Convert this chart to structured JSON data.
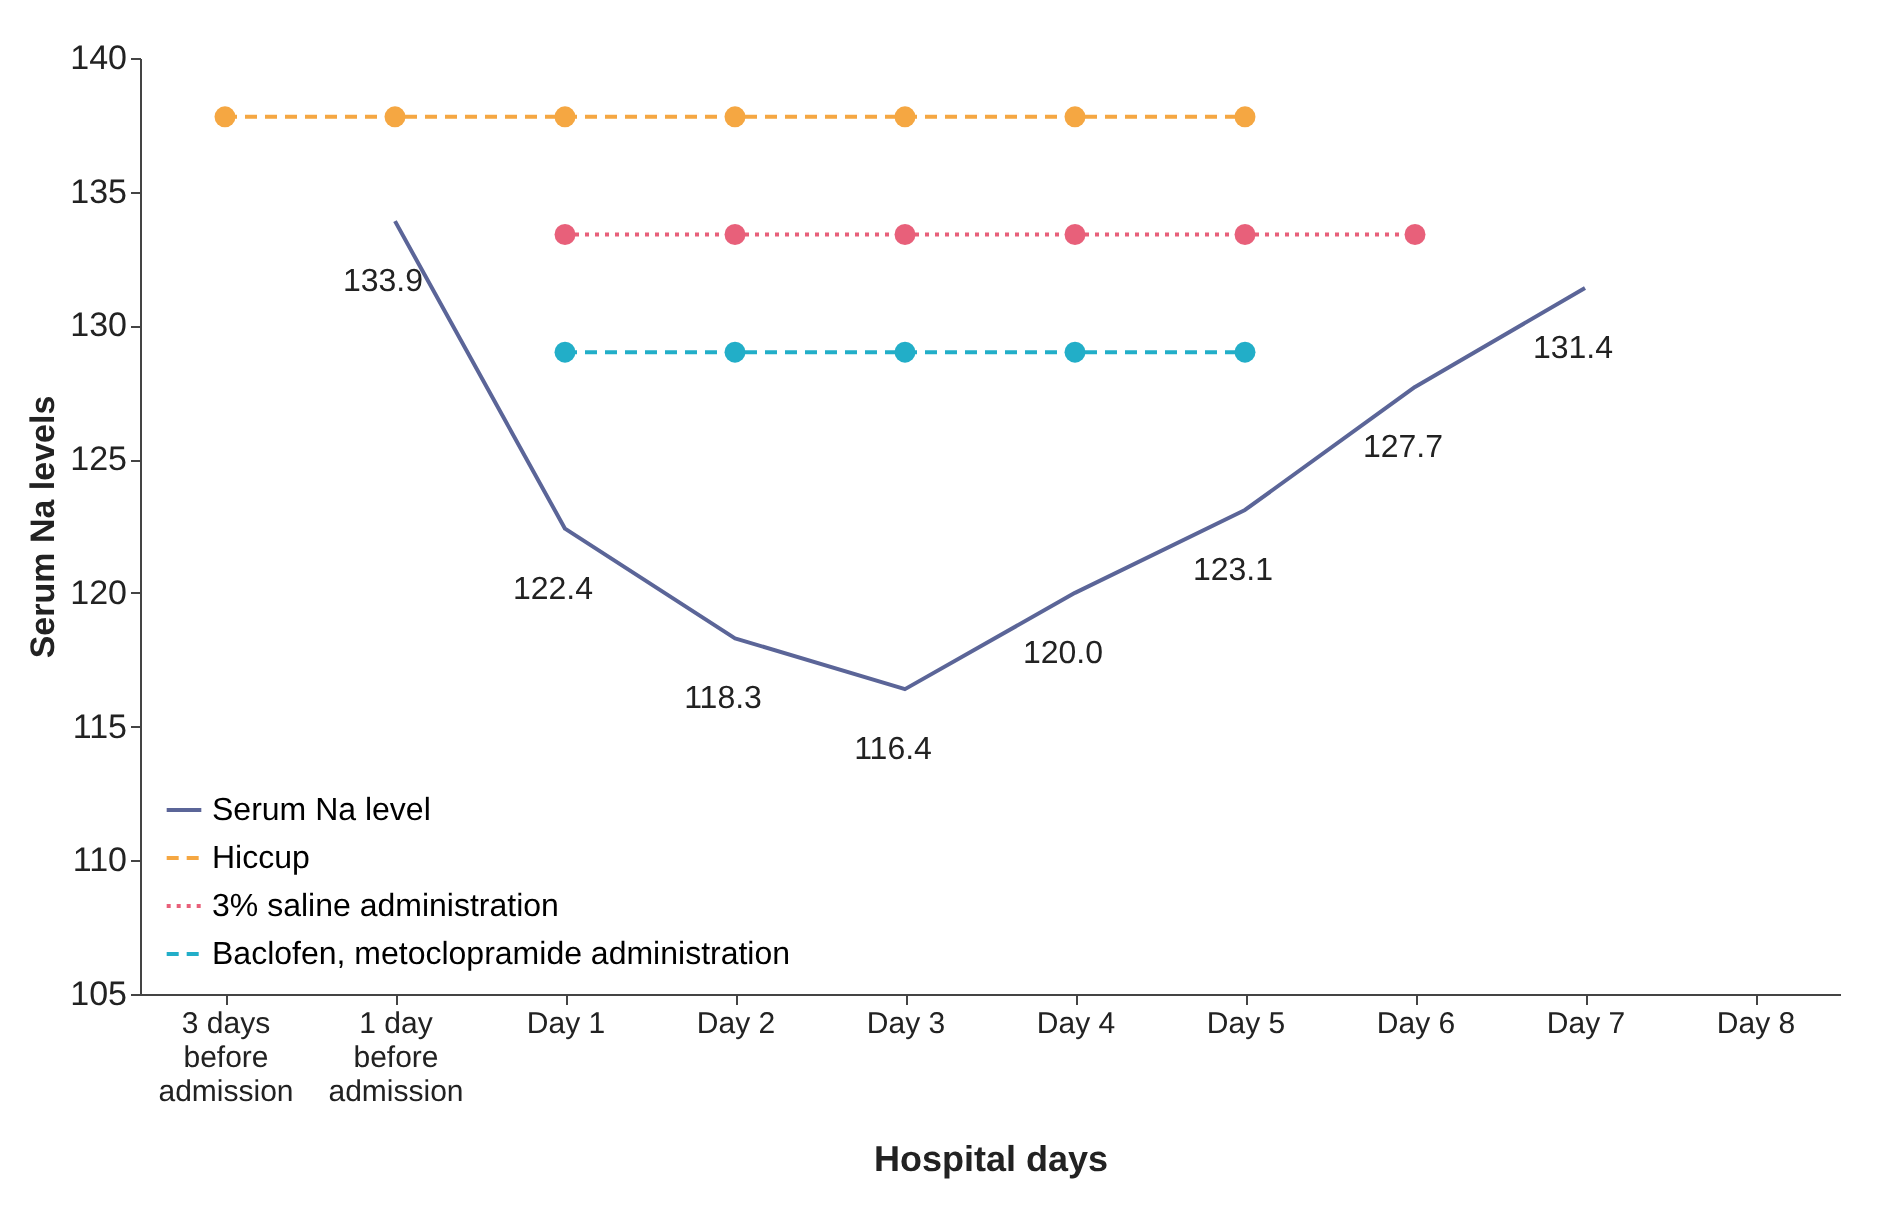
{
  "chart_data": {
    "type": "line",
    "xlabel": "Hospital days",
    "ylabel": "Serum Na levels",
    "categories": [
      "3 days\nbefore\nadmission",
      "1 day\nbefore\nadmission",
      "Day 1",
      "Day 2",
      "Day 3",
      "Day 4",
      "Day 5",
      "Day 6",
      "Day 7",
      "Day 8"
    ],
    "series": [
      {
        "name": "Serum Na level",
        "color": "#5b6598",
        "line_style": "solid",
        "marker": "none",
        "values": [
          null,
          133.9,
          122.4,
          118.3,
          116.4,
          120.0,
          123.1,
          127.7,
          131.4,
          null
        ],
        "value_labels": [
          null,
          "133.9",
          "122.4",
          "118.3",
          "116.4",
          "120.0",
          "123.1",
          "127.7",
          "131.4",
          null
        ]
      },
      {
        "name": "Hiccup",
        "color": "#f5a742",
        "line_style": "dashed",
        "marker": "circle",
        "values": [
          137.8,
          137.8,
          137.8,
          137.8,
          137.8,
          137.8,
          137.8,
          null,
          null,
          null
        ]
      },
      {
        "name": "3% saline administration",
        "color": "#e8607a",
        "line_style": "dotted",
        "marker": "circle",
        "values": [
          null,
          null,
          133.4,
          133.4,
          133.4,
          133.4,
          133.4,
          133.4,
          null,
          null
        ]
      },
      {
        "name": "Baclofen, metoclopramide administration",
        "color": "#22aec8",
        "line_style": "dashed",
        "marker": "circle",
        "values": [
          null,
          null,
          129.0,
          129.0,
          129.0,
          129.0,
          129.0,
          null,
          null,
          null
        ]
      }
    ],
    "ylim": [
      105,
      140
    ],
    "yticks": [
      105,
      110,
      115,
      120,
      125,
      130,
      135,
      140
    ],
    "grid": false,
    "legend": "bottom left"
  }
}
